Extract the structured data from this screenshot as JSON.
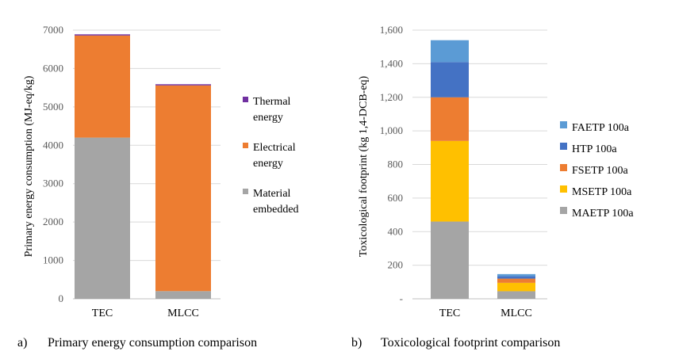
{
  "chart_data": [
    {
      "type": "bar",
      "stacked": true,
      "caption_letter": "a)",
      "caption": "Primary energy consumption comparison",
      "ylabel": "Primary energy consumption (MJ-eq/kg)",
      "ylim": [
        0,
        7000
      ],
      "yticks": [
        "0",
        "1000",
        "2000",
        "3000",
        "4000",
        "5000",
        "6000",
        "7000"
      ],
      "categories": [
        "TEC",
        "MLCC"
      ],
      "grid": true,
      "legend_position": "right",
      "series": [
        {
          "name": "Material embedded",
          "legend_lines": [
            "Material",
            "embedded"
          ],
          "values": [
            4200,
            200
          ],
          "color": "#a5a5a5"
        },
        {
          "name": "Electrical energy",
          "legend_lines": [
            "Electrical",
            "energy"
          ],
          "values": [
            2660,
            5360
          ],
          "color": "#ed7d31"
        },
        {
          "name": "Thermal energy",
          "legend_lines": [
            "Thermal",
            "energy"
          ],
          "values": [
            30,
            30
          ],
          "color": "#7030a0"
        }
      ]
    },
    {
      "type": "bar",
      "stacked": true,
      "caption_letter": "b)",
      "caption": "Toxicological footprint comparison",
      "ylabel": "Toxicological footprint (kg 1,4-DCB-eq)",
      "ylim": [
        0,
        1600
      ],
      "yticks": [
        "-",
        "200",
        "400",
        "600",
        "800",
        "1,000",
        "1,200",
        "1,400",
        "1,600"
      ],
      "categories": [
        "TEC",
        "MLCC"
      ],
      "grid": true,
      "legend_position": "right",
      "series": [
        {
          "name": "MAETP 100a",
          "values": [
            460,
            45
          ],
          "color": "#a5a5a5"
        },
        {
          "name": "MSETP 100a",
          "values": [
            480,
            50
          ],
          "color": "#ffc000"
        },
        {
          "name": "FSETP 100a",
          "values": [
            260,
            25
          ],
          "color": "#ed7d31"
        },
        {
          "name": "HTP 100a",
          "values": [
            210,
            15
          ],
          "color": "#4472c4"
        },
        {
          "name": "FAETP 100a",
          "values": [
            130,
            12
          ],
          "color": "#5b9bd5"
        }
      ]
    }
  ]
}
